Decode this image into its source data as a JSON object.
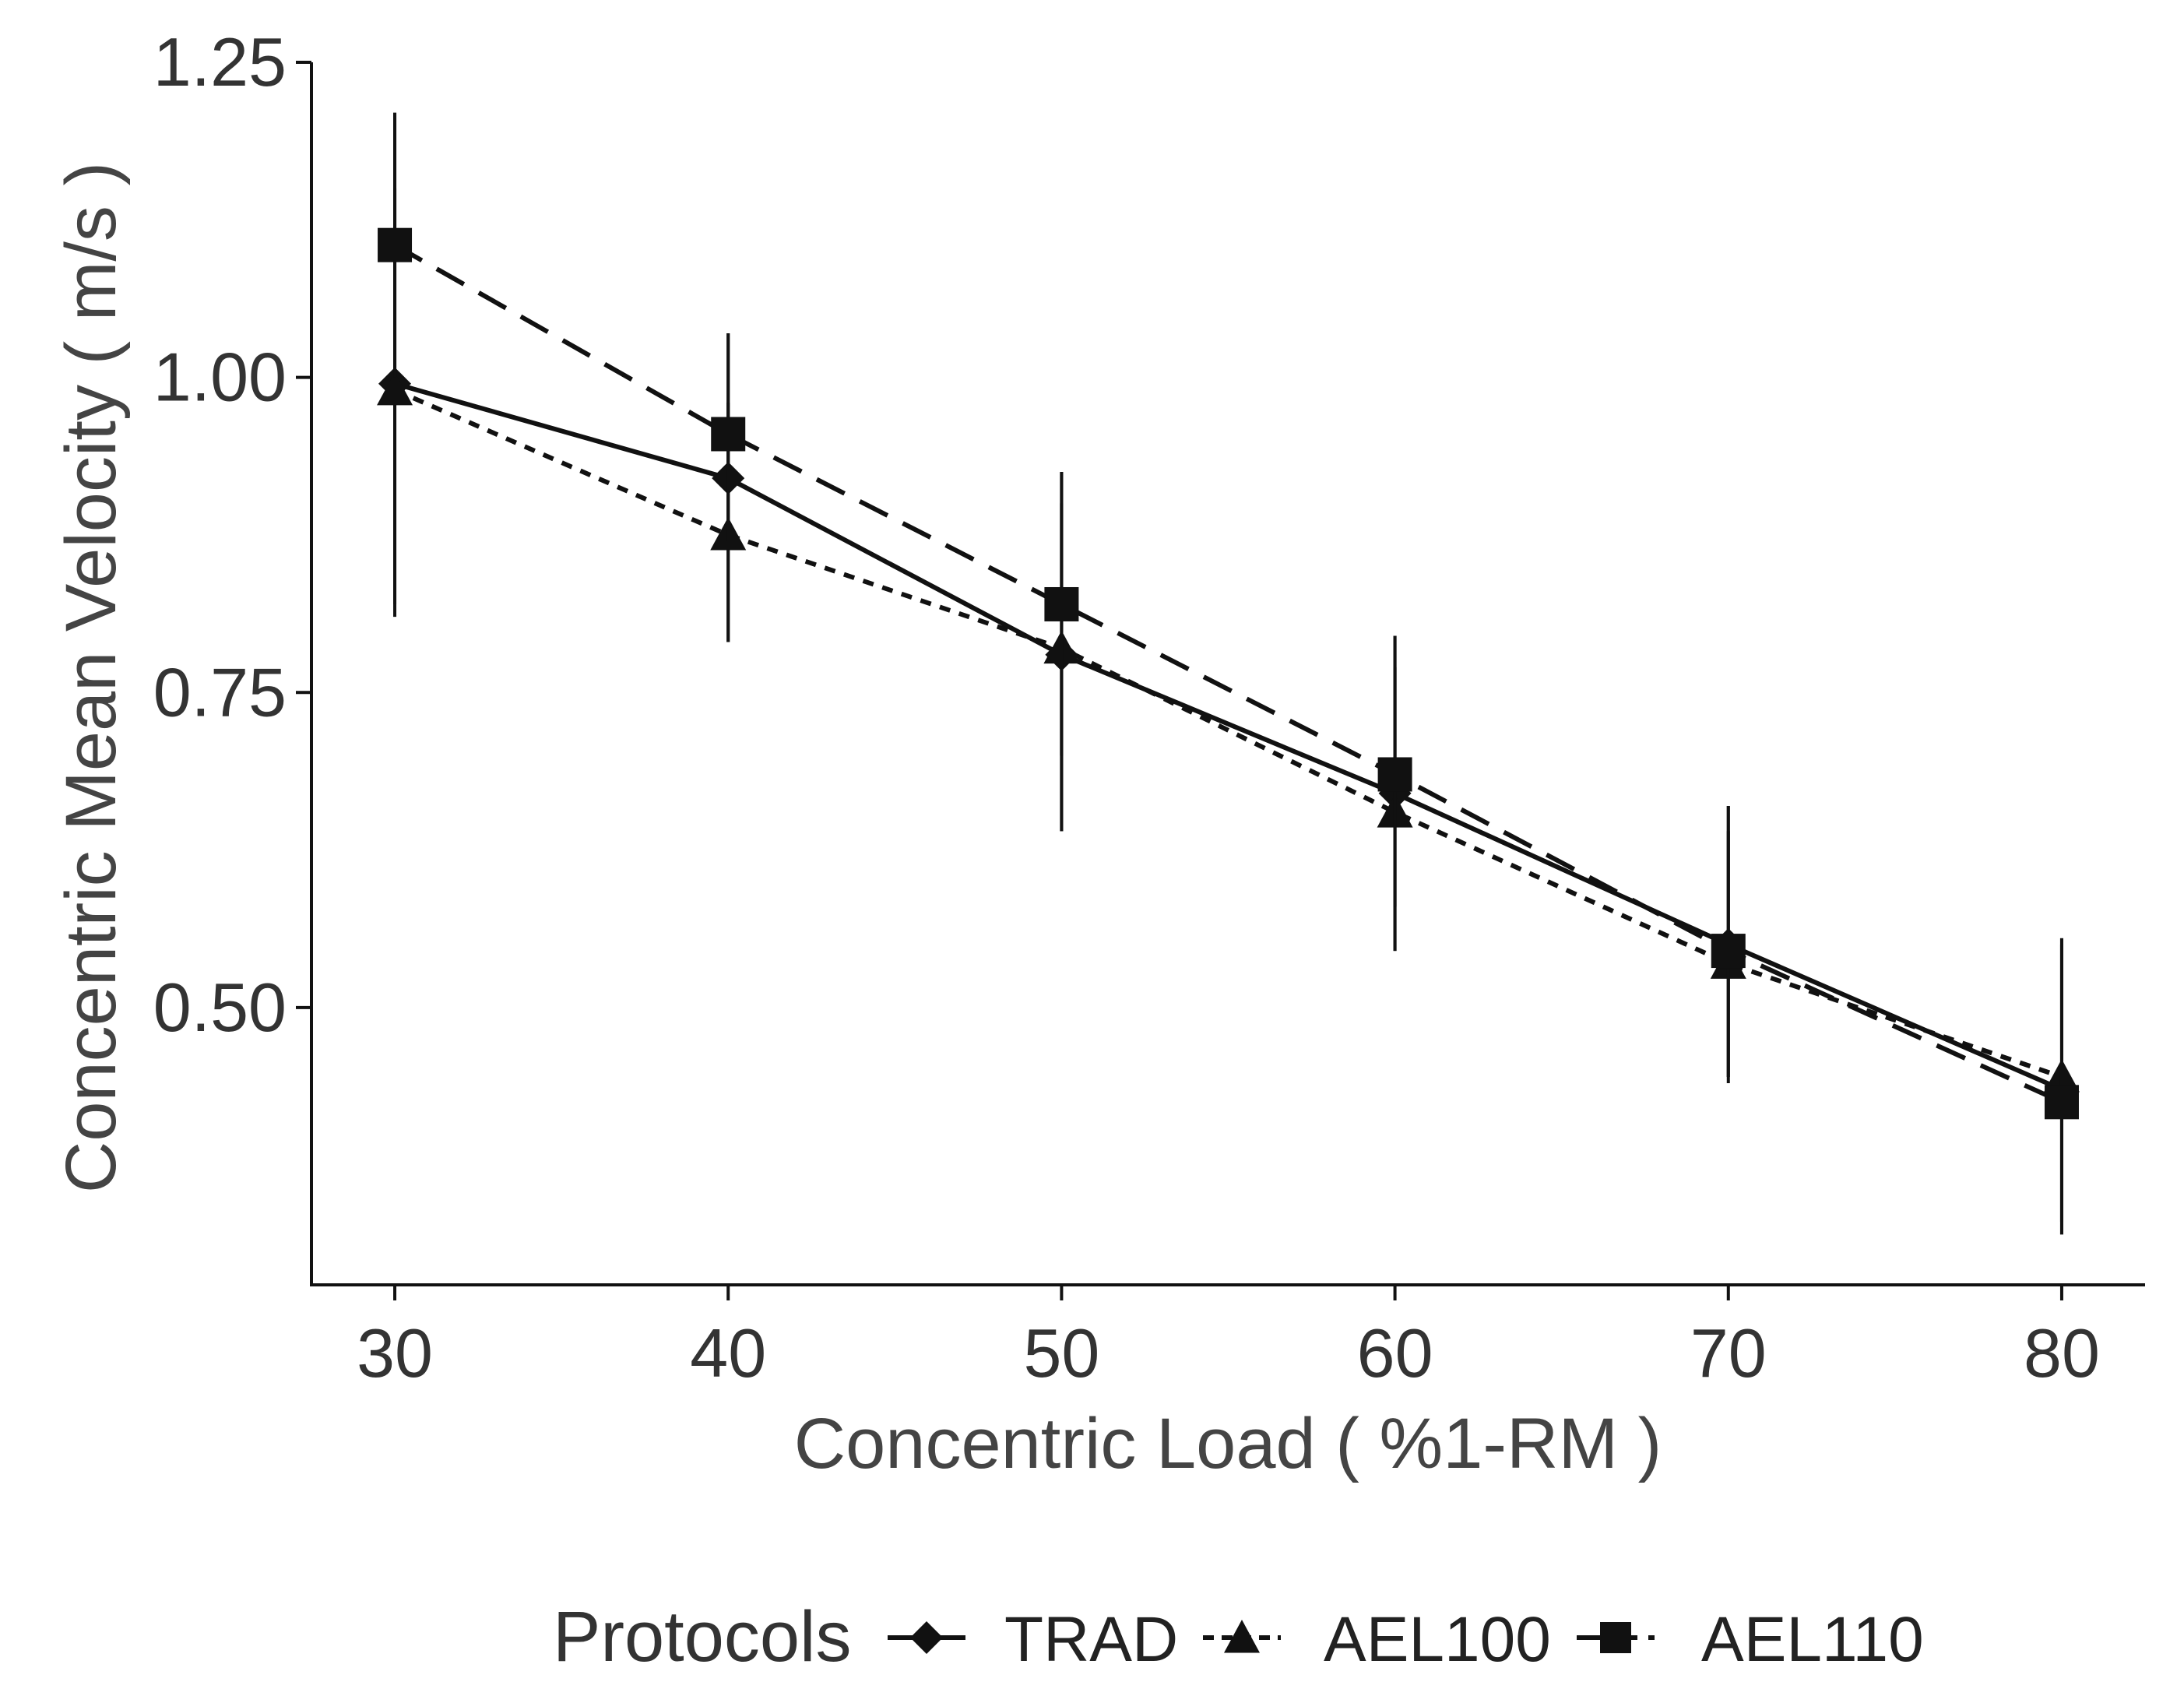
{
  "chart_data": {
    "type": "line",
    "title": "",
    "xlabel": "Concentric Load ( %1-RM )",
    "ylabel": "Concentric Mean Velocity ( m/s )",
    "x": [
      30,
      40,
      50,
      60,
      70,
      80
    ],
    "xlim": [
      27.5,
      82.5
    ],
    "ylim": [
      0.28,
      1.25
    ],
    "xticks": [
      "30",
      "40",
      "50",
      "60",
      "70",
      "80"
    ],
    "yticks": [
      "0.50",
      "0.75",
      "1.00",
      "1.25"
    ],
    "ytick_values": [
      0.5,
      0.75,
      1.0,
      1.25
    ],
    "grid": false,
    "legend_position": "bottom",
    "legend_title": "Protocols",
    "series": [
      {
        "name": "TRAD",
        "marker": "diamond",
        "line": "solid",
        "values": [
          0.995,
          0.92,
          0.78,
          0.67,
          0.55,
          0.435
        ],
        "err_low": [
          0.81,
          0.79,
          0.64,
          0.545,
          0.44,
          0.32
        ],
        "err_high": [
          1.21,
          1.035,
          0.925,
          0.795,
          0.66,
          0.555
        ]
      },
      {
        "name": "AEL100",
        "marker": "triangle",
        "line": "dotted",
        "values": [
          0.99,
          0.875,
          0.785,
          0.655,
          0.535,
          0.445
        ],
        "err_low": [
          0.82,
          0.79,
          0.64,
          0.545,
          0.445,
          0.33
        ],
        "err_high": [
          1.15,
          0.98,
          0.9,
          0.77,
          0.64,
          0.55
        ]
      },
      {
        "name": "AEL110",
        "marker": "square",
        "line": "dashed",
        "values": [
          1.105,
          0.955,
          0.82,
          0.685,
          0.545,
          0.425
        ],
        "err_low": [
          1.0,
          0.87,
          0.7,
          0.58,
          0.445,
          0.32
        ],
        "err_high": [
          1.21,
          1.035,
          0.925,
          0.795,
          0.66,
          0.555
        ]
      }
    ]
  }
}
